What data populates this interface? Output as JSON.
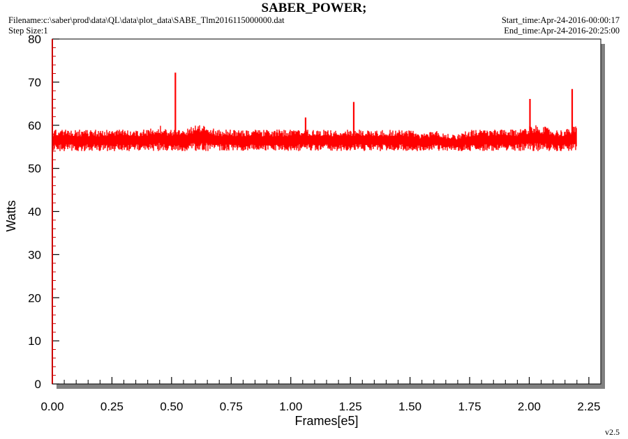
{
  "header": {
    "title": "SABER_POWER;",
    "filename": "Filename:c:\\saber\\prod\\data\\QL\\data\\plot_data\\SABE_Tlm2016115000000.dat",
    "step_size": "Step Size:1",
    "start_time": "Start_time:Apr-24-2016-00:00:17",
    "end_time": "End_time:Apr-24-2016-20:25:00"
  },
  "footer": {
    "version": "v2.5"
  },
  "colors": {
    "series": "#ff0000",
    "axis": "#cc0000",
    "shadow": "#808080"
  },
  "chart_data": {
    "type": "line",
    "title": "SABER_POWER;",
    "xlabel": "Frames[e5]",
    "ylabel": "Watts",
    "xlim": [
      0,
      2.3
    ],
    "ylim": [
      0,
      80
    ],
    "x_ticks": [
      "0.00",
      "0.25",
      "0.50",
      "0.75",
      "1.00",
      "1.25",
      "1.50",
      "1.75",
      "2.00",
      "2.25"
    ],
    "x_tick_values": [
      0,
      0.25,
      0.5,
      0.75,
      1.0,
      1.25,
      1.5,
      1.75,
      2.0,
      2.25
    ],
    "y_ticks": [
      "0",
      "10",
      "20",
      "30",
      "40",
      "50",
      "60",
      "70",
      "80"
    ],
    "y_tick_values": [
      0,
      10,
      20,
      30,
      40,
      50,
      60,
      70,
      80
    ],
    "grid": false,
    "series": [
      {
        "x": [
          0.0,
          0.05,
          0.1,
          0.15,
          0.2,
          0.25,
          0.3,
          0.35,
          0.4,
          0.45,
          0.5,
          0.55,
          0.6,
          0.65,
          0.7,
          0.75,
          0.8,
          0.85,
          0.9,
          0.95,
          1.0,
          1.05,
          1.1,
          1.15,
          1.2,
          1.25,
          1.3,
          1.35,
          1.4,
          1.45,
          1.5,
          1.55,
          1.6,
          1.65,
          1.7,
          1.75,
          1.8,
          1.85,
          1.9,
          1.95,
          2.0,
          2.05,
          2.1,
          2.15,
          2.2
        ],
        "y_min": [
          54,
          54,
          54,
          54,
          54,
          54,
          54,
          54,
          54,
          54,
          54,
          54,
          54,
          54,
          54,
          54,
          54,
          54,
          54,
          54,
          54,
          54,
          54,
          54,
          54,
          54,
          54,
          54,
          54,
          54,
          54,
          54,
          54,
          54,
          54,
          54,
          54,
          54,
          54,
          54,
          54,
          54,
          54,
          54,
          54
        ],
        "y_max": [
          59,
          59,
          59,
          59,
          59,
          59,
          59,
          59,
          59,
          60,
          59,
          59,
          60,
          60,
          59,
          59,
          59,
          59,
          59,
          59,
          59,
          59,
          59,
          59,
          59,
          59,
          59,
          59,
          59,
          59,
          59,
          58,
          59,
          58,
          58,
          59,
          59,
          59,
          59,
          59,
          60,
          60,
          59,
          59,
          60
        ],
        "spikes": [
          {
            "x": 0.516,
            "y": 72.2
          },
          {
            "x": 1.062,
            "y": 61.8
          },
          {
            "x": 1.264,
            "y": 65.4
          },
          {
            "x": 2.003,
            "y": 66.1
          },
          {
            "x": 2.18,
            "y": 68.4
          }
        ]
      }
    ]
  }
}
